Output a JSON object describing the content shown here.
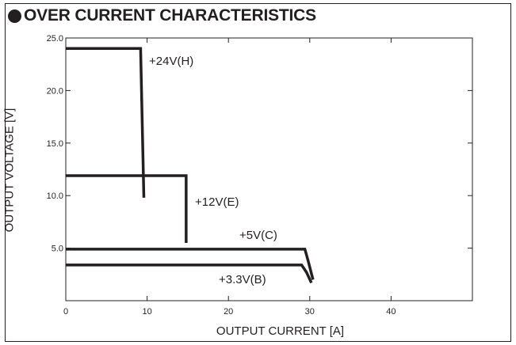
{
  "title": "OVER CURRENT CHARACTERISTICS",
  "chart_data": {
    "type": "line",
    "xlabel": "OUTPUT  CURRENT  [A]",
    "ylabel": "OUTPUT  VOLTAGE [V]",
    "xlim": [
      0,
      50
    ],
    "ylim": [
      0,
      25
    ],
    "xticks": [
      0,
      10,
      20,
      30,
      40
    ],
    "xtick_labels": [
      "0",
      "10",
      "20",
      "30",
      "40"
    ],
    "yticks": [
      5,
      10,
      15,
      20,
      25
    ],
    "ytick_labels": [
      "5.0",
      "10.0",
      "15.0",
      "20.0",
      "25.0"
    ],
    "grid": false,
    "series": [
      {
        "name": "+24V(H)",
        "x": [
          0,
          9.2,
          9.6
        ],
        "y": [
          24.0,
          24.0,
          9.8
        ]
      },
      {
        "name": "+12V(E)",
        "x": [
          0,
          14.8,
          14.8
        ],
        "y": [
          11.9,
          11.9,
          5.5
        ]
      },
      {
        "name": "+5V(C)",
        "x": [
          0,
          29.4,
          29.8,
          30.4
        ],
        "y": [
          4.9,
          4.9,
          3.8,
          2.0
        ]
      },
      {
        "name": "+3.3V(B)",
        "x": [
          0,
          29.0,
          29.6,
          30.2
        ],
        "y": [
          3.4,
          3.4,
          2.7,
          1.7
        ]
      }
    ]
  }
}
